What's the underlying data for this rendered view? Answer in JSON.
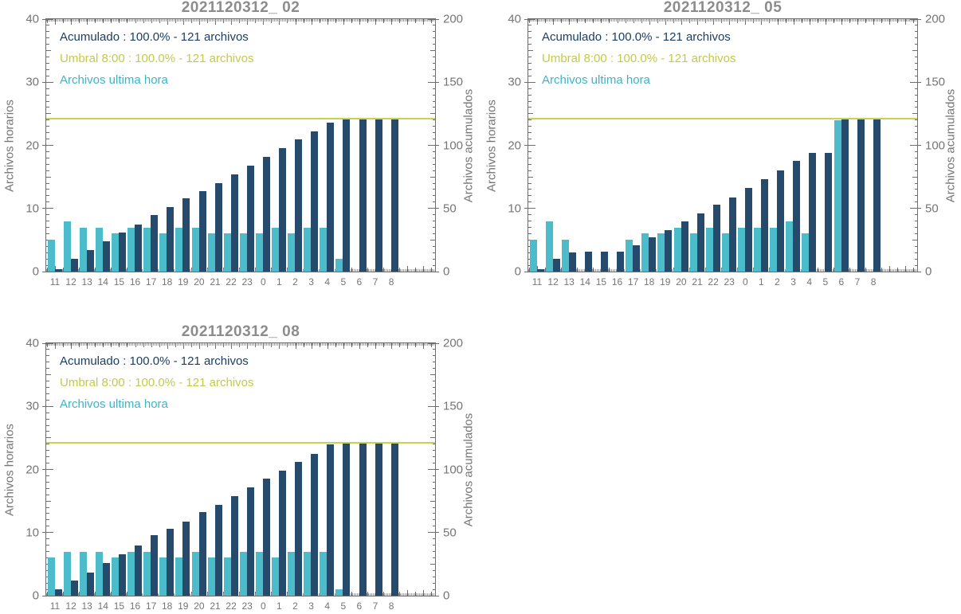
{
  "page": {
    "background": "#ffffff"
  },
  "colors": {
    "accumulated_bar": "#254a6b",
    "hourly_bar": "#4cbccb",
    "threshold_line": "#c9d150",
    "legend_accumulated_text": "#1c3e63",
    "legend_threshold_text": "#c2cb49",
    "legend_hourly_text": "#3eb3c8",
    "axis": "#6e6e6e",
    "tick_label": "#757575",
    "title_text": "#8c8c8c"
  },
  "chart_data": [
    {
      "type": "bar",
      "title": "2021120312_ 02",
      "ylabel_left": "Archivos horarios",
      "ylabel_right": "Archivos acumulados",
      "ylim_left": [
        0,
        40
      ],
      "ylim_right": [
        0,
        200
      ],
      "yticks_left": [
        0,
        10,
        20,
        30,
        40
      ],
      "yticks_right": [
        0,
        50,
        100,
        150,
        200
      ],
      "categories": [
        "11",
        "12",
        "13",
        "14",
        "15",
        "16",
        "17",
        "18",
        "19",
        "20",
        "21",
        "22",
        "23",
        "0",
        "1",
        "2",
        "3",
        "4",
        "5",
        "6",
        "7",
        "8"
      ],
      "legend": [
        {
          "label": "Acumulado : 100.0% - 121 archivos",
          "color_key": "legend_accumulated_text"
        },
        {
          "label": "Umbral 8:00 : 100.0% - 121 archivos",
          "color_key": "legend_threshold_text"
        },
        {
          "label": "Archivos ultima hora",
          "color_key": "legend_hourly_text"
        }
      ],
      "threshold": {
        "axis": "right",
        "value": 121
      },
      "series": [
        {
          "name": "Acumulado",
          "axis": "right",
          "color_key": "accumulated_bar",
          "values": [
            2,
            10,
            17,
            24,
            31,
            37,
            45,
            51,
            58,
            64,
            70,
            77,
            84,
            91,
            98,
            105,
            111,
            118,
            121,
            121,
            121,
            121
          ]
        },
        {
          "name": "Archivos ultima hora",
          "axis": "left",
          "color_key": "hourly_bar",
          "values": [
            5,
            8,
            7,
            7,
            6,
            7,
            7,
            6,
            7,
            7,
            6,
            6,
            6,
            6,
            7,
            6,
            7,
            7,
            2,
            0,
            0,
            0
          ]
        }
      ]
    },
    {
      "type": "bar",
      "title": "2021120312_ 05",
      "ylabel_left": "Archivos horarios",
      "ylabel_right": "Archivos acumulados",
      "ylim_left": [
        0,
        40
      ],
      "ylim_right": [
        0,
        200
      ],
      "yticks_left": [
        0,
        10,
        20,
        30,
        40
      ],
      "yticks_right": [
        0,
        50,
        100,
        150,
        200
      ],
      "categories": [
        "11",
        "12",
        "13",
        "14",
        "15",
        "16",
        "17",
        "18",
        "19",
        "20",
        "21",
        "22",
        "23",
        "0",
        "1",
        "2",
        "3",
        "4",
        "5",
        "6",
        "7",
        "8"
      ],
      "legend": [
        {
          "label": "Acumulado : 100.0% - 121 archivos",
          "color_key": "legend_accumulated_text"
        },
        {
          "label": "Umbral 8:00 : 100.0% - 121 archivos",
          "color_key": "legend_threshold_text"
        },
        {
          "label": "Archivos ultima hora",
          "color_key": "legend_hourly_text"
        }
      ],
      "threshold": {
        "axis": "right",
        "value": 121
      },
      "series": [
        {
          "name": "Acumulado",
          "axis": "right",
          "color_key": "accumulated_bar",
          "values": [
            2,
            10,
            15,
            16,
            16,
            16,
            21,
            27,
            33,
            40,
            46,
            53,
            59,
            66,
            73,
            80,
            88,
            94,
            94,
            121,
            121,
            121
          ]
        },
        {
          "name": "Archivos ultima hora",
          "axis": "left",
          "color_key": "hourly_bar",
          "values": [
            5,
            8,
            5,
            0,
            0,
            0,
            5,
            6,
            6,
            7,
            6,
            7,
            6,
            7,
            7,
            7,
            8,
            6,
            0,
            24,
            0,
            0
          ]
        }
      ]
    },
    {
      "type": "bar",
      "title": "2021120312_ 08",
      "ylabel_left": "Archivos horarios",
      "ylabel_right": "Archivos acumulados",
      "ylim_left": [
        0,
        40
      ],
      "ylim_right": [
        0,
        200
      ],
      "yticks_left": [
        0,
        10,
        20,
        30,
        40
      ],
      "yticks_right": [
        0,
        50,
        100,
        150,
        200
      ],
      "categories": [
        "11",
        "12",
        "13",
        "14",
        "15",
        "16",
        "17",
        "18",
        "19",
        "20",
        "21",
        "22",
        "23",
        "0",
        "1",
        "2",
        "3",
        "4",
        "5",
        "6",
        "7",
        "8"
      ],
      "legend": [
        {
          "label": "Acumulado : 100.0% - 121 archivos",
          "color_key": "legend_accumulated_text"
        },
        {
          "label": "Umbral 8:00 : 100.0% - 121 archivos",
          "color_key": "legend_threshold_text"
        },
        {
          "label": "Archivos ultima hora",
          "color_key": "legend_hourly_text"
        }
      ],
      "threshold": {
        "axis": "right",
        "value": 121
      },
      "series": [
        {
          "name": "Acumulado",
          "axis": "right",
          "color_key": "accumulated_bar",
          "values": [
            5,
            12,
            18,
            26,
            33,
            40,
            48,
            53,
            59,
            66,
            72,
            79,
            86,
            93,
            99,
            106,
            112,
            120,
            121,
            121,
            121,
            121
          ]
        },
        {
          "name": "Archivos ultima hora",
          "axis": "left",
          "color_key": "hourly_bar",
          "values": [
            6,
            7,
            7,
            7,
            6,
            7,
            7,
            6,
            6,
            7,
            6,
            6,
            7,
            7,
            6,
            7,
            7,
            7,
            1,
            0,
            0,
            0
          ]
        }
      ]
    }
  ]
}
